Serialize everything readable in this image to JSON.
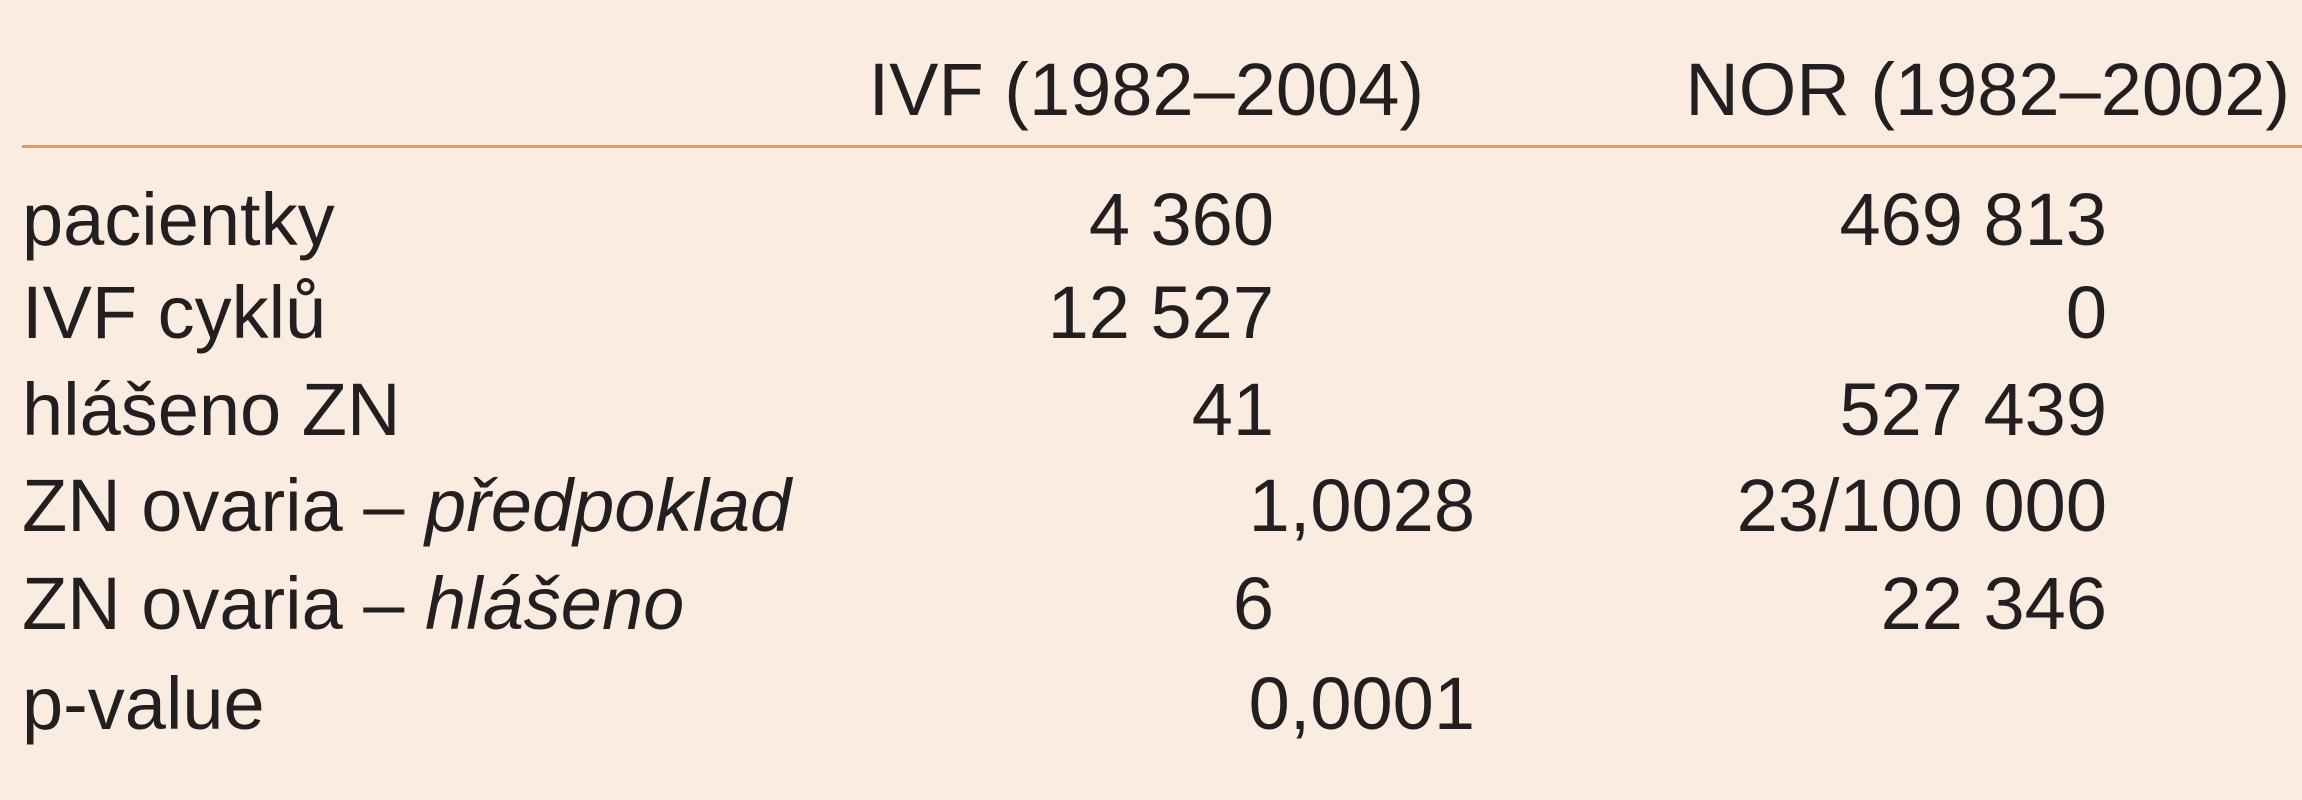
{
  "table": {
    "columns": [
      "IVF (1982–2004)",
      "NOR (1982–2002)"
    ],
    "rows": [
      {
        "label": "pacientky",
        "values": [
          "4 360",
          "469 813"
        ]
      },
      {
        "label": "IVF cyklů",
        "values": [
          "12 527",
          "0"
        ]
      },
      {
        "label": "hlášeno ZN",
        "values": [
          "41",
          "527 439"
        ]
      },
      {
        "label": "ZN ovaria – ",
        "label_italic": "předpoklad",
        "values": [
          "1,0028",
          "23/100 000"
        ]
      },
      {
        "label": "ZN ovaria – ",
        "label_italic": "hlášeno",
        "values": [
          "6",
          "22 346"
        ]
      },
      {
        "label": "p-value",
        "values": [
          "0,0001"
        ]
      }
    ]
  }
}
